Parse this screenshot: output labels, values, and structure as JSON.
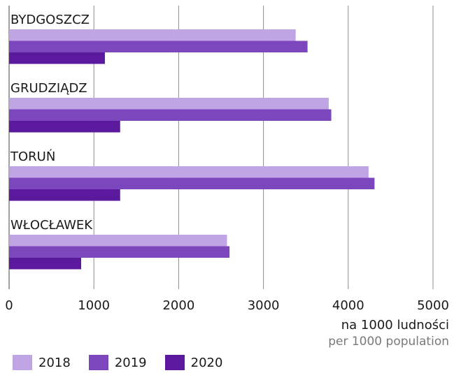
{
  "chart_data": {
    "type": "bar",
    "orientation": "horizontal",
    "categories": [
      "BYDGOSZCZ",
      "GRUDZIĄDZ",
      "TORUŃ",
      "WŁOCŁAWEK"
    ],
    "series": [
      {
        "name": "2018",
        "color": "#c0a5e5",
        "values": [
          3380,
          3770,
          4240,
          2570
        ]
      },
      {
        "name": "2019",
        "color": "#7c46bd",
        "values": [
          3520,
          3800,
          4310,
          2600
        ]
      },
      {
        "name": "2020",
        "color": "#5b1a9e",
        "values": [
          1130,
          1310,
          1310,
          850
        ]
      }
    ],
    "xlim": [
      0,
      5000
    ],
    "xticks": [
      "0",
      "1000",
      "2000",
      "3000",
      "4000",
      "5000"
    ],
    "xlabel": "na 1000 ludności",
    "xlabel_secondary": "per 1000 population",
    "grid": true,
    "legend_position": "bottom-left"
  }
}
